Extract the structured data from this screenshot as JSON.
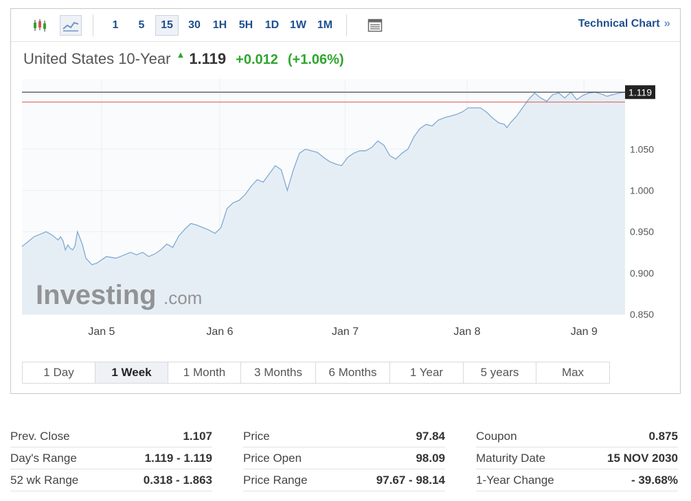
{
  "toolbar": {
    "chart_types": [
      {
        "icon": "candlestick-icon",
        "active": false
      },
      {
        "icon": "area-chart-icon",
        "active": true
      }
    ],
    "intervals": [
      "1",
      "5",
      "15",
      "30",
      "1H",
      "5H",
      "1D",
      "1W",
      "1M"
    ],
    "active_interval": "15",
    "table_icon": "table-icon",
    "technical_chart_label": "Technical Chart",
    "technical_chart_chevron": "»"
  },
  "quote": {
    "name": "United States 10-Year",
    "direction": "up",
    "last": "1.119",
    "change": "+0.012",
    "change_pct": "(+1.06%)"
  },
  "colors": {
    "up": "#2fa62f",
    "line": "#7fa9d6",
    "fill": "#e6eef5",
    "prev_close_line": "#d9534f",
    "current_line": "#222222",
    "brand": "#1e4f8f"
  },
  "chart_data": {
    "type": "area",
    "title": "",
    "xlabel": "",
    "ylabel": "",
    "ylim": [
      0.85,
      1.135
    ],
    "y_ticks": [
      "1.050",
      "1.000",
      "0.950",
      "0.900",
      "0.850"
    ],
    "x_ticks": [
      "Jan 5",
      "Jan 6",
      "Jan 7",
      "Jan 8",
      "Jan 9"
    ],
    "current_value": "1.119",
    "current_level": 1.119,
    "prev_close_level": 1.107,
    "watermark": "Investing.com",
    "series": [
      {
        "x": [
          0,
          0.5,
          1,
          1.5,
          2,
          2.5,
          3,
          3.2,
          3.4,
          3.6,
          3.8,
          4,
          4.2,
          4.4,
          4.5,
          4.6,
          5,
          5.3,
          5.8,
          6.2,
          6.5,
          7,
          7.8,
          8.5,
          9,
          9.5,
          10,
          10.5,
          11,
          11.5,
          12,
          12.5,
          13,
          13.5,
          14,
          14.5,
          15,
          15.5,
          16,
          16.5,
          17,
          17.5,
          18,
          18.5,
          19,
          19.5,
          20,
          20.5,
          21,
          21.5,
          22,
          22.5,
          23,
          23.5,
          24,
          24.5,
          25,
          25.5,
          26,
          26.5,
          27,
          27.5,
          28,
          28.5,
          29,
          29.5,
          30,
          30.5,
          31,
          31.5,
          32,
          32.5,
          33,
          33.5,
          34,
          34.5,
          35,
          35.5,
          36,
          36.5,
          37,
          37.5,
          38,
          38.5,
          39,
          39.5,
          40,
          40.2,
          40.5,
          41,
          41.5,
          42,
          42.5,
          43,
          43.5,
          44,
          44.5,
          45,
          45.5,
          46,
          46.5,
          47,
          47.5,
          48,
          48.5,
          49,
          49.5,
          50
        ],
        "y": [
          0.932,
          0.938,
          0.944,
          0.947,
          0.95,
          0.946,
          0.94,
          0.944,
          0.939,
          0.928,
          0.934,
          0.93,
          0.928,
          0.933,
          0.942,
          0.95,
          0.935,
          0.918,
          0.91,
          0.912,
          0.915,
          0.92,
          0.918,
          0.922,
          0.925,
          0.922,
          0.925,
          0.92,
          0.923,
          0.928,
          0.935,
          0.931,
          0.945,
          0.953,
          0.96,
          0.958,
          0.955,
          0.952,
          0.948,
          0.955,
          0.978,
          0.985,
          0.988,
          0.995,
          1.005,
          1.013,
          1.01,
          1.02,
          1.03,
          1.025,
          1.0,
          1.025,
          1.045,
          1.05,
          1.048,
          1.046,
          1.04,
          1.035,
          1.032,
          1.03,
          1.04,
          1.045,
          1.048,
          1.048,
          1.052,
          1.06,
          1.055,
          1.042,
          1.038,
          1.045,
          1.05,
          1.065,
          1.075,
          1.08,
          1.078,
          1.085,
          1.088,
          1.09,
          1.092,
          1.095,
          1.1,
          1.1,
          1.1,
          1.095,
          1.088,
          1.082,
          1.08,
          1.076,
          1.082,
          1.09,
          1.1,
          1.11,
          1.118,
          1.112,
          1.108,
          1.116,
          1.118,
          1.112,
          1.119,
          1.11,
          1.115,
          1.118,
          1.119,
          1.117,
          1.114,
          1.116,
          1.118,
          1.119
        ]
      }
    ],
    "x_tick_positions": [
      6.6,
      16.4,
      26.8,
      36.9,
      46.6
    ]
  },
  "range_tabs": [
    "1 Day",
    "1 Week",
    "1 Month",
    "3 Months",
    "6 Months",
    "1 Year",
    "5 years",
    "Max"
  ],
  "active_range": "1 Week",
  "stats": [
    [
      {
        "label": "Prev. Close",
        "value": "1.107"
      },
      {
        "label": "Day's Range",
        "value": "1.119 - 1.119"
      },
      {
        "label": "52 wk Range",
        "value": "0.318 - 1.863"
      }
    ],
    [
      {
        "label": "Price",
        "value": "97.84"
      },
      {
        "label": "Price Open",
        "value": "98.09"
      },
      {
        "label": "Price Range",
        "value": "97.67 - 98.14"
      }
    ],
    [
      {
        "label": "Coupon",
        "value": "0.875"
      },
      {
        "label": "Maturity Date",
        "value": "15 NOV 2030"
      },
      {
        "label": "1-Year Change",
        "value": "- 39.68%"
      }
    ]
  ]
}
